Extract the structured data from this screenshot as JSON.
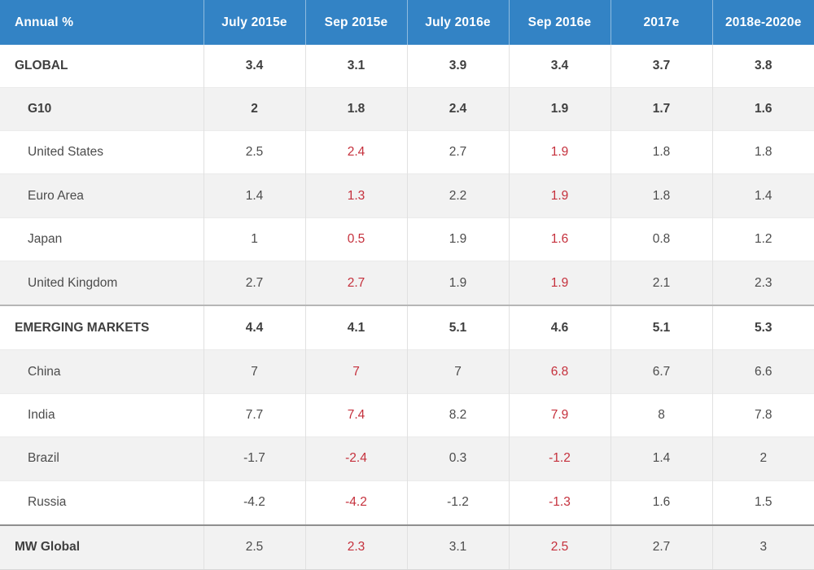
{
  "title": "Annual %",
  "header": {
    "bg_color": "#3383c5",
    "text_color": "#ffffff",
    "columns": [
      "Annual %",
      "July 2015e",
      "Sep 2015e",
      "July 2016e",
      "Sep 2016e",
      "2017e",
      "2018e-2020e"
    ]
  },
  "colors": {
    "revision_red": "#c5303c",
    "body_text": "#4c4c4c",
    "stripe_bg": "#f2f2f2",
    "medium_separator": "#b6b6b6",
    "strong_separator": "#8f8f8f"
  },
  "table": {
    "red_columns": [
      "Sep 2015e",
      "Sep 2016e"
    ],
    "rows": [
      {
        "label": "GLOBAL",
        "values": [
          "3.4",
          "3.1",
          "3.9",
          "3.4",
          "3.7",
          "3.8"
        ]
      },
      {
        "label": "G10",
        "values": [
          "2",
          "1.8",
          "2.4",
          "1.9",
          "1.7",
          "1.6"
        ]
      },
      {
        "label": "United States",
        "values": [
          "2.5",
          "2.4",
          "2.7",
          "1.9",
          "1.8",
          "1.8"
        ]
      },
      {
        "label": "Euro Area",
        "values": [
          "1.4",
          "1.3",
          "2.2",
          "1.9",
          "1.8",
          "1.4"
        ]
      },
      {
        "label": "Japan",
        "values": [
          "1",
          "0.5",
          "1.9",
          "1.6",
          "0.8",
          "1.2"
        ]
      },
      {
        "label": "United Kingdom",
        "values": [
          "2.7",
          "2.7",
          "1.9",
          "1.9",
          "2.1",
          "2.3"
        ]
      },
      {
        "label": "EMERGING MARKETS",
        "values": [
          "4.4",
          "4.1",
          "5.1",
          "4.6",
          "5.1",
          "5.3"
        ]
      },
      {
        "label": "China",
        "values": [
          "7",
          "7",
          "7",
          "6.8",
          "6.7",
          "6.6"
        ]
      },
      {
        "label": "India",
        "values": [
          "7.7",
          "7.4",
          "8.2",
          "7.9",
          "8",
          "7.8"
        ]
      },
      {
        "label": "Brazil",
        "values": [
          "-1.7",
          "-2.4",
          "0.3",
          "-1.2",
          "1.4",
          "2"
        ]
      },
      {
        "label": "Russia",
        "values": [
          "-4.2",
          "-4.2",
          "-1.2",
          "-1.3",
          "1.6",
          "1.5"
        ]
      },
      {
        "label": "MW Global",
        "values": [
          "2.5",
          "2.3",
          "3.1",
          "2.5",
          "2.7",
          "3"
        ]
      }
    ]
  },
  "chart_data": {
    "type": "table",
    "title": "Annual %",
    "columns": [
      "July 2015e",
      "Sep 2015e",
      "July 2016e",
      "Sep 2016e",
      "2017e",
      "2018e-2020e"
    ],
    "red_highlight_columns": [
      "Sep 2015e",
      "Sep 2016e"
    ],
    "rows": [
      {
        "label": "GLOBAL",
        "values": [
          3.4,
          3.1,
          3.9,
          3.4,
          3.7,
          3.8
        ]
      },
      {
        "label": "G10",
        "values": [
          2,
          1.8,
          2.4,
          1.9,
          1.7,
          1.6
        ]
      },
      {
        "label": "United States",
        "values": [
          2.5,
          2.4,
          2.7,
          1.9,
          1.8,
          1.8
        ]
      },
      {
        "label": "Euro Area",
        "values": [
          1.4,
          1.3,
          2.2,
          1.9,
          1.8,
          1.4
        ]
      },
      {
        "label": "Japan",
        "values": [
          1,
          0.5,
          1.9,
          1.6,
          0.8,
          1.2
        ]
      },
      {
        "label": "United Kingdom",
        "values": [
          2.7,
          2.7,
          1.9,
          1.9,
          2.1,
          2.3
        ]
      },
      {
        "label": "EMERGING MARKETS",
        "values": [
          4.4,
          4.1,
          5.1,
          4.6,
          5.1,
          5.3
        ]
      },
      {
        "label": "China",
        "values": [
          7,
          7,
          7,
          6.8,
          6.7,
          6.6
        ]
      },
      {
        "label": "India",
        "values": [
          7.7,
          7.4,
          8.2,
          7.9,
          8,
          7.8
        ]
      },
      {
        "label": "Brazil",
        "values": [
          -1.7,
          -2.4,
          0.3,
          -1.2,
          1.4,
          2
        ]
      },
      {
        "label": "Russia",
        "values": [
          -4.2,
          -4.2,
          -1.2,
          -1.3,
          1.6,
          1.5
        ]
      },
      {
        "label": "MW Global",
        "values": [
          2.5,
          2.3,
          3.1,
          2.5,
          2.7,
          3
        ]
      }
    ]
  }
}
